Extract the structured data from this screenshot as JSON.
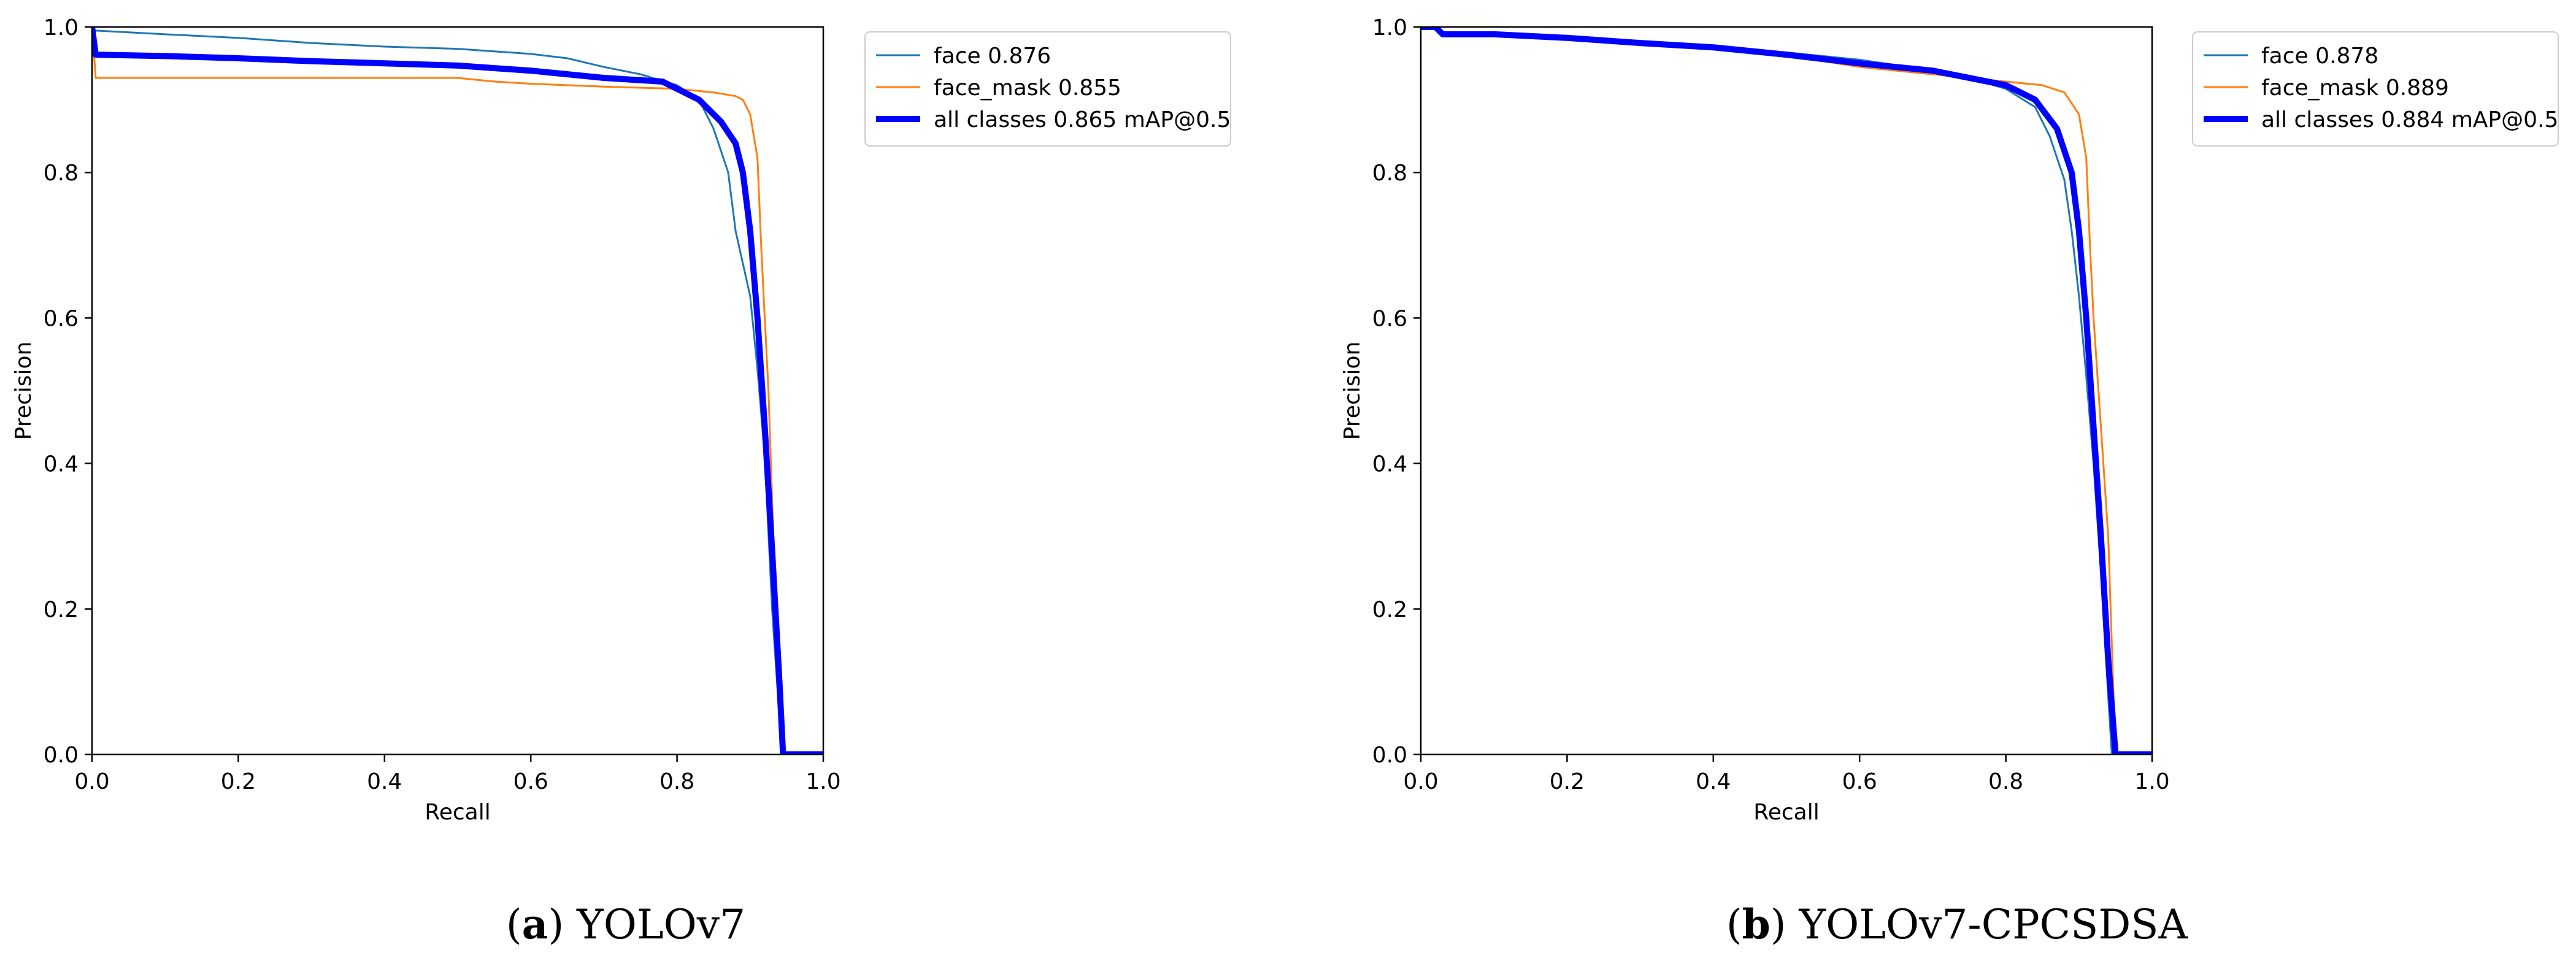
{
  "chart_data": [
    {
      "type": "line",
      "xlabel": "Recall",
      "ylabel": "Precision",
      "xlim": [
        0,
        1
      ],
      "ylim": [
        0,
        1
      ],
      "xticks": [
        "0.0",
        "0.2",
        "0.4",
        "0.6",
        "0.8",
        "1.0"
      ],
      "yticks": [
        "0.0",
        "0.2",
        "0.4",
        "0.6",
        "0.8",
        "1.0"
      ],
      "grid": false,
      "legend_position": "outside-top-right",
      "caption": {
        "letter": "a",
        "label": "YOLOv7"
      },
      "series": [
        {
          "name": "face 0.876",
          "color": "#1f77b4",
          "width": "thin",
          "points": [
            [
              0,
              1.0
            ],
            [
              0.005,
              0.995
            ],
            [
              0.1,
              0.99
            ],
            [
              0.2,
              0.985
            ],
            [
              0.3,
              0.978
            ],
            [
              0.4,
              0.973
            ],
            [
              0.5,
              0.97
            ],
            [
              0.6,
              0.963
            ],
            [
              0.65,
              0.957
            ],
            [
              0.7,
              0.945
            ],
            [
              0.75,
              0.935
            ],
            [
              0.8,
              0.92
            ],
            [
              0.83,
              0.9
            ],
            [
              0.85,
              0.86
            ],
            [
              0.87,
              0.8
            ],
            [
              0.88,
              0.72
            ],
            [
              0.9,
              0.63
            ],
            [
              0.91,
              0.53
            ],
            [
              0.92,
              0.41
            ],
            [
              0.93,
              0.2
            ],
            [
              0.94,
              0.05
            ],
            [
              0.945,
              0.0
            ],
            [
              1.0,
              0.0
            ]
          ]
        },
        {
          "name": "face_mask 0.855",
          "color": "#ff7f0e",
          "width": "thin",
          "points": [
            [
              0,
              1.0
            ],
            [
              0.005,
              0.93
            ],
            [
              0.1,
              0.93
            ],
            [
              0.2,
              0.93
            ],
            [
              0.3,
              0.93
            ],
            [
              0.4,
              0.93
            ],
            [
              0.5,
              0.93
            ],
            [
              0.55,
              0.925
            ],
            [
              0.6,
              0.922
            ],
            [
              0.7,
              0.918
            ],
            [
              0.8,
              0.915
            ],
            [
              0.85,
              0.91
            ],
            [
              0.88,
              0.905
            ],
            [
              0.89,
              0.9
            ],
            [
              0.9,
              0.88
            ],
            [
              0.91,
              0.82
            ],
            [
              0.915,
              0.7
            ],
            [
              0.92,
              0.6
            ],
            [
              0.925,
              0.5
            ],
            [
              0.93,
              0.35
            ],
            [
              0.935,
              0.2
            ],
            [
              0.94,
              0.1
            ],
            [
              0.945,
              0.0
            ],
            [
              1.0,
              0.0
            ]
          ]
        },
        {
          "name": "all classes 0.865 mAP@0.5",
          "color": "#0000ff",
          "width": "thick",
          "points": [
            [
              0,
              1.0
            ],
            [
              0.005,
              0.962
            ],
            [
              0.1,
              0.96
            ],
            [
              0.2,
              0.957
            ],
            [
              0.3,
              0.953
            ],
            [
              0.4,
              0.95
            ],
            [
              0.5,
              0.947
            ],
            [
              0.6,
              0.94
            ],
            [
              0.7,
              0.93
            ],
            [
              0.78,
              0.925
            ],
            [
              0.8,
              0.915
            ],
            [
              0.83,
              0.9
            ],
            [
              0.86,
              0.87
            ],
            [
              0.88,
              0.84
            ],
            [
              0.89,
              0.8
            ],
            [
              0.9,
              0.72
            ],
            [
              0.91,
              0.6
            ],
            [
              0.92,
              0.45
            ],
            [
              0.93,
              0.28
            ],
            [
              0.94,
              0.1
            ],
            [
              0.945,
              0.0
            ],
            [
              1.0,
              0.0
            ]
          ]
        }
      ]
    },
    {
      "type": "line",
      "xlabel": "Recall",
      "ylabel": "Precision",
      "xlim": [
        0,
        1
      ],
      "ylim": [
        0,
        1
      ],
      "xticks": [
        "0.0",
        "0.2",
        "0.4",
        "0.6",
        "0.8",
        "1.0"
      ],
      "yticks": [
        "0.0",
        "0.2",
        "0.4",
        "0.6",
        "0.8",
        "1.0"
      ],
      "grid": false,
      "legend_position": "outside-top-right",
      "caption": {
        "letter": "b",
        "label": "YOLOv7-CPCSDSA"
      },
      "series": [
        {
          "name": "face 0.878",
          "color": "#1f77b4",
          "width": "thin",
          "points": [
            [
              0,
              1.0
            ],
            [
              0.02,
              1.0
            ],
            [
              0.03,
              0.99
            ],
            [
              0.1,
              0.99
            ],
            [
              0.2,
              0.985
            ],
            [
              0.3,
              0.98
            ],
            [
              0.4,
              0.973
            ],
            [
              0.5,
              0.965
            ],
            [
              0.6,
              0.955
            ],
            [
              0.7,
              0.94
            ],
            [
              0.75,
              0.93
            ],
            [
              0.8,
              0.915
            ],
            [
              0.84,
              0.89
            ],
            [
              0.86,
              0.85
            ],
            [
              0.88,
              0.79
            ],
            [
              0.89,
              0.72
            ],
            [
              0.9,
              0.63
            ],
            [
              0.91,
              0.52
            ],
            [
              0.92,
              0.4
            ],
            [
              0.93,
              0.25
            ],
            [
              0.94,
              0.08
            ],
            [
              0.945,
              0.0
            ],
            [
              1.0,
              0.0
            ]
          ]
        },
        {
          "name": "face_mask 0.889",
          "color": "#ff7f0e",
          "width": "thin",
          "points": [
            [
              0,
              1.0
            ],
            [
              0.02,
              1.0
            ],
            [
              0.03,
              0.99
            ],
            [
              0.1,
              0.99
            ],
            [
              0.2,
              0.985
            ],
            [
              0.3,
              0.978
            ],
            [
              0.4,
              0.97
            ],
            [
              0.5,
              0.96
            ],
            [
              0.55,
              0.953
            ],
            [
              0.6,
              0.945
            ],
            [
              0.7,
              0.935
            ],
            [
              0.8,
              0.925
            ],
            [
              0.85,
              0.92
            ],
            [
              0.88,
              0.91
            ],
            [
              0.9,
              0.88
            ],
            [
              0.91,
              0.82
            ],
            [
              0.915,
              0.7
            ],
            [
              0.92,
              0.6
            ],
            [
              0.93,
              0.45
            ],
            [
              0.94,
              0.3
            ],
            [
              0.945,
              0.15
            ],
            [
              0.95,
              0.0
            ],
            [
              1.0,
              0.0
            ]
          ]
        },
        {
          "name": "all classes 0.884 mAP@0.5",
          "color": "#0000ff",
          "width": "thick",
          "points": [
            [
              0,
              1.0
            ],
            [
              0.02,
              1.0
            ],
            [
              0.03,
              0.99
            ],
            [
              0.1,
              0.99
            ],
            [
              0.2,
              0.985
            ],
            [
              0.3,
              0.978
            ],
            [
              0.4,
              0.972
            ],
            [
              0.5,
              0.962
            ],
            [
              0.6,
              0.95
            ],
            [
              0.7,
              0.94
            ],
            [
              0.8,
              0.92
            ],
            [
              0.84,
              0.9
            ],
            [
              0.87,
              0.86
            ],
            [
              0.89,
              0.8
            ],
            [
              0.9,
              0.72
            ],
            [
              0.91,
              0.6
            ],
            [
              0.92,
              0.45
            ],
            [
              0.93,
              0.3
            ],
            [
              0.94,
              0.13
            ],
            [
              0.95,
              0.0
            ],
            [
              1.0,
              0.0
            ]
          ]
        }
      ]
    }
  ]
}
